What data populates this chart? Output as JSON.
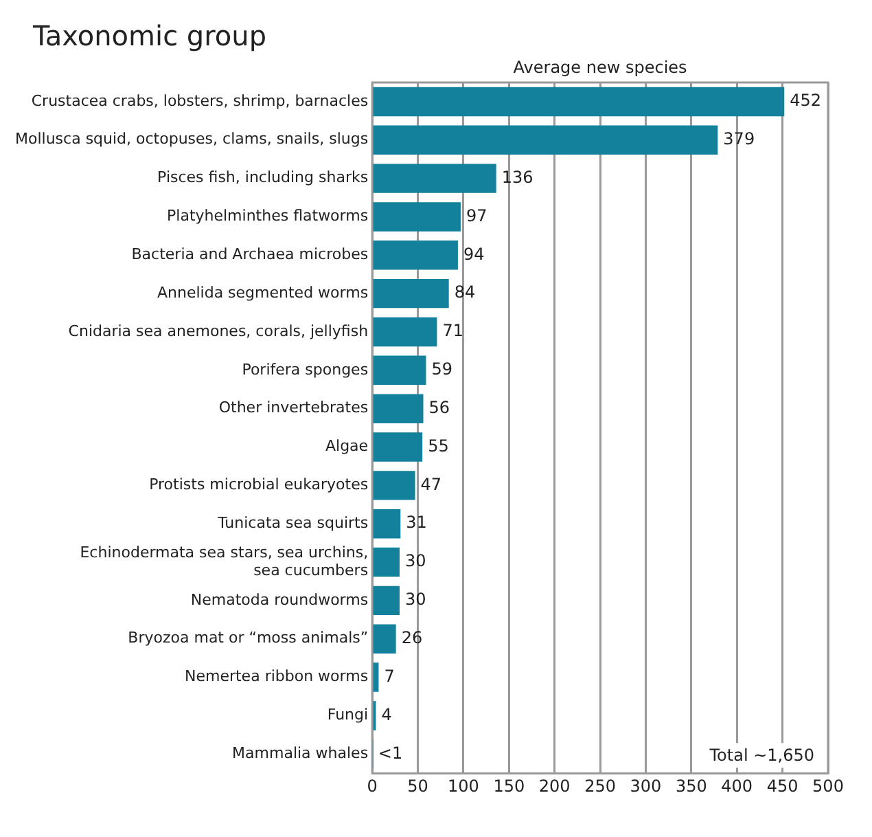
{
  "chart_data": {
    "type": "bar",
    "orientation": "horizontal",
    "title": "Taxonomic group",
    "xlabel": "Average new species",
    "categories": [
      "Crustacea crabs, lobsters, shrimp, barnacles",
      "Mollusca squid, octopuses, clams, snails, slugs",
      "Pisces fish, including sharks",
      "Platyhelminthes flatworms",
      "Bacteria and Archaea microbes",
      "Annelida segmented worms",
      "Cnidaria sea anemones, corals, jellyfish",
      "Porifera sponges",
      "Other invertebrates",
      "Algae",
      "Protists microbial eukaryotes",
      "Tunicata sea squirts",
      "Echinodermata sea stars, sea urchins, sea cucumbers",
      "Nematoda roundworms",
      "Bryozoa mat or “moss animals”",
      "Nemertea ribbon worms",
      "Fungi",
      "Mammalia whales"
    ],
    "values": [
      452,
      379,
      136,
      97,
      94,
      84,
      71,
      59,
      56,
      55,
      47,
      31,
      30,
      30,
      26,
      7,
      4,
      0.5
    ],
    "value_labels": [
      "452",
      "379",
      "136",
      "97",
      "94",
      "84",
      "71",
      "59",
      "56",
      "55",
      "47",
      "31",
      "30",
      "30",
      "26",
      "7",
      "4",
      "<1"
    ],
    "color": "#13819b",
    "xlim": [
      0,
      500
    ],
    "xticks": [
      0,
      50,
      100,
      150,
      200,
      250,
      300,
      350,
      400,
      450,
      500
    ],
    "grid": "x",
    "annotations": [
      "Total ~1,650"
    ]
  }
}
